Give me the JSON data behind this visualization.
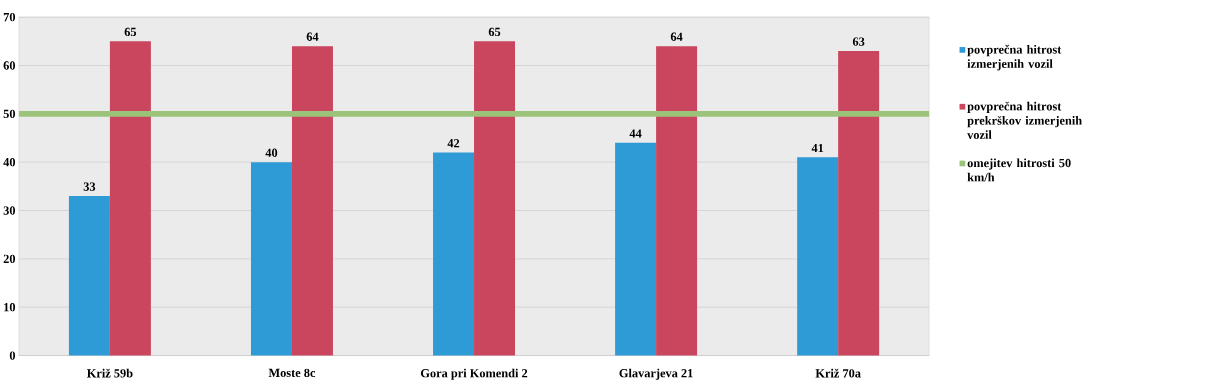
{
  "chart_data": {
    "type": "bar",
    "categories": [
      "Križ 59b",
      "Moste 8c",
      "Gora pri Komendi 2",
      "Glavarjeva  21",
      "Križ 70a"
    ],
    "series": [
      {
        "name": "povprečna hitrost izmerjenih vozil",
        "color": "#2e9bd6",
        "values": [
          33,
          40,
          42,
          44,
          41
        ]
      },
      {
        "name": "povprečna hitrost prekrškov izmerjenih vozil",
        "color": "#c9465e",
        "values": [
          65,
          64,
          65,
          64,
          63
        ]
      }
    ],
    "ref_lines": [
      {
        "axis": "y",
        "value": 50,
        "label": "omejitev hitrosti 50 km/h",
        "color": "#9bc47a"
      }
    ],
    "ylim": [
      0,
      70
    ],
    "yticks": [
      0,
      10,
      20,
      30,
      40,
      50,
      60,
      70
    ],
    "grid": "y",
    "legend": "right",
    "data_labels": true
  }
}
